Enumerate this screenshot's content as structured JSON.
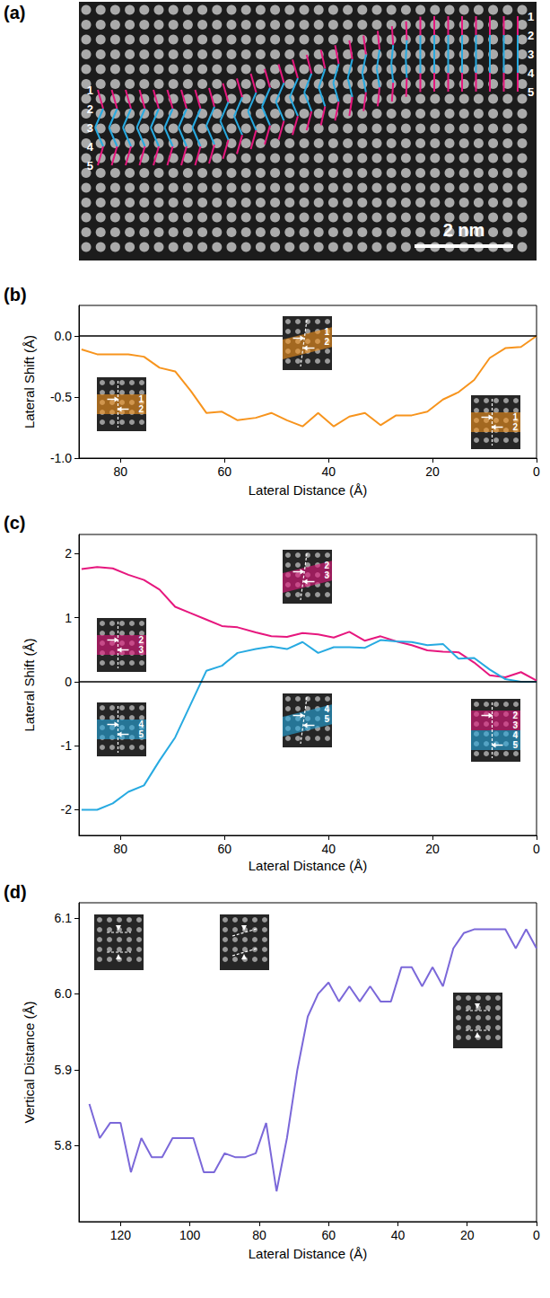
{
  "panel_a": {
    "label": "(a)",
    "row_labels": [
      "1",
      "2",
      "3",
      "4",
      "5"
    ],
    "scale_bar": "2 nm"
  },
  "chart_data": [
    {
      "label": "(b)",
      "type": "line",
      "xlabel": "Lateral Distance (Å)",
      "ylabel": "Lateral Shift (Å)",
      "xlim": [
        88,
        0
      ],
      "xticks": [
        80,
        60,
        40,
        20,
        0
      ],
      "ylim": [
        -1,
        0.25
      ],
      "yticks": [
        {
          "value": -1,
          "label": "-1.0"
        },
        -0.5,
        {
          "value": 0,
          "label": "0.0"
        }
      ],
      "grid": false,
      "hlines": [
        0
      ],
      "x": [
        87.5,
        84.5,
        81.5,
        78.5,
        75.5,
        72.5,
        69.5,
        66.5,
        63.5,
        60.5,
        57.5,
        54,
        51,
        48,
        45,
        42,
        39,
        36,
        33,
        30,
        27,
        24,
        21,
        18,
        15,
        12,
        9,
        6,
        3,
        0
      ],
      "series": [
        {
          "color": "#f7941d",
          "values": [
            -0.11,
            -0.15,
            -0.15,
            -0.15,
            -0.17,
            -0.26,
            -0.29,
            -0.45,
            -0.63,
            -0.62,
            -0.69,
            -0.67,
            -0.63,
            -0.69,
            -0.74,
            -0.63,
            -0.74,
            -0.66,
            -0.63,
            -0.73,
            -0.65,
            -0.65,
            -0.62,
            -0.52,
            -0.46,
            -0.36,
            -0.18,
            -0.1,
            -0.09,
            0.0
          ]
        }
      ],
      "insets": [
        {
          "labels": [
            "1",
            "2"
          ],
          "color": "#f7941d"
        },
        {
          "labels": [
            "1",
            "2"
          ],
          "color": "#f7941d"
        },
        {
          "labels": [
            "1",
            "2"
          ],
          "color": "#f7941d"
        }
      ]
    },
    {
      "label": "(c)",
      "type": "line",
      "xlabel": "Lateral Distance (Å)",
      "ylabel": "Lateral Shift (Å)",
      "xlim": [
        88,
        0
      ],
      "xticks": [
        80,
        60,
        40,
        20,
        0
      ],
      "ylim": [
        -2.4,
        2.3
      ],
      "yticks": [
        -2,
        -1,
        0,
        1,
        2
      ],
      "grid": false,
      "hlines": [
        0
      ],
      "x": [
        87.5,
        84.5,
        81.5,
        78.5,
        75.5,
        72.5,
        69.5,
        66.5,
        63.5,
        60.5,
        57.5,
        54,
        51,
        48,
        45,
        42,
        39,
        36,
        33,
        30,
        27,
        24,
        21,
        18,
        15,
        12,
        9,
        6,
        3,
        0
      ],
      "series": [
        {
          "color": "#e6177e",
          "values": [
            1.76,
            1.79,
            1.77,
            1.67,
            1.59,
            1.44,
            1.17,
            1.07,
            0.97,
            0.87,
            0.85,
            0.77,
            0.71,
            0.7,
            0.76,
            0.74,
            0.69,
            0.78,
            0.64,
            0.71,
            0.63,
            0.57,
            0.49,
            0.47,
            0.46,
            0.3,
            0.1,
            0.07,
            0.15,
            0.02
          ]
        },
        {
          "color": "#27aae1",
          "values": [
            -2.0,
            -2.0,
            -1.9,
            -1.72,
            -1.62,
            -1.23,
            -0.87,
            -0.35,
            0.17,
            0.25,
            0.45,
            0.51,
            0.55,
            0.51,
            0.62,
            0.45,
            0.54,
            0.54,
            0.53,
            0.65,
            0.63,
            0.62,
            0.57,
            0.59,
            0.36,
            0.37,
            0.19,
            0.04,
            0.0,
            0.0
          ]
        }
      ],
      "insets": [
        {
          "labels": [
            "2",
            "3"
          ],
          "color": "#e6177e"
        },
        {
          "labels": [
            "2",
            "3"
          ],
          "color": "#e6177e"
        },
        {
          "labels": [
            "4",
            "5"
          ],
          "color": "#27aae1"
        },
        {
          "labels": [
            "4",
            "5"
          ],
          "color": "#27aae1"
        },
        {
          "labels": [
            "2",
            "3",
            "4",
            "5"
          ],
          "colors": [
            "#e6177e",
            "#27aae1"
          ]
        }
      ]
    },
    {
      "label": "(d)",
      "type": "line",
      "xlabel": "Lateral Distance (Å)",
      "ylabel": "Vertical Distance (Å)",
      "xlim": [
        132,
        0
      ],
      "xticks": [
        120,
        100,
        80,
        60,
        40,
        20,
        0
      ],
      "ylim": [
        5.7,
        6.12
      ],
      "yticks": [
        5.8,
        5.9,
        {
          "value": 6,
          "label": "6.0"
        },
        6.1
      ],
      "grid": false,
      "x": [
        129,
        126,
        123,
        120,
        117,
        114,
        111,
        108,
        105,
        102,
        99,
        96,
        93,
        90,
        87,
        84,
        81,
        78,
        75,
        72,
        69,
        66,
        63,
        60,
        57,
        54,
        51,
        48,
        45,
        42,
        39,
        36,
        33,
        30,
        27,
        24,
        21,
        18,
        15,
        12,
        9,
        6,
        3,
        0
      ],
      "series": [
        {
          "color": "#7b68d9",
          "values": [
            5.855,
            5.81,
            5.83,
            5.83,
            5.765,
            5.81,
            5.785,
            5.785,
            5.81,
            5.81,
            5.81,
            5.765,
            5.765,
            5.79,
            5.785,
            5.785,
            5.79,
            5.83,
            5.74,
            5.81,
            5.9,
            5.97,
            6.0,
            6.015,
            5.99,
            6.01,
            5.99,
            6.01,
            5.99,
            5.99,
            6.035,
            6.035,
            6.01,
            6.035,
            6.01,
            6.06,
            6.08,
            6.085,
            6.085,
            6.085,
            6.085,
            6.06,
            6.085,
            6.06
          ]
        }
      ]
    }
  ]
}
